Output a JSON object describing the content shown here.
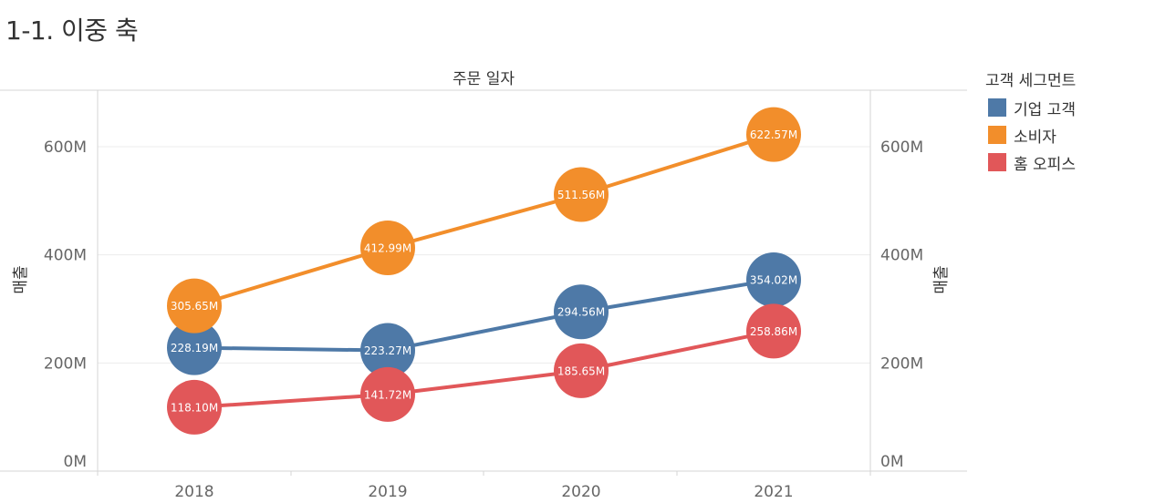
{
  "title": "1-1. 이중 축",
  "chart_data": {
    "type": "line",
    "title": "1-1. 이중 축",
    "xlabel": "주문 일자",
    "ylabel": "매출",
    "ylabel_right": "매출",
    "categories": [
      "2018",
      "2019",
      "2020",
      "2021"
    ],
    "y_ticks": [
      "0M",
      "200M",
      "400M",
      "600M"
    ],
    "y_tick_values": [
      0,
      200,
      400,
      600
    ],
    "ylim": [
      0,
      700
    ],
    "grid": true,
    "legend_title": "고객 세그먼트",
    "legend_position": "right",
    "series": [
      {
        "name": "기업 고객",
        "color": "#4e79a7",
        "values": [
          228.19,
          223.27,
          294.56,
          354.02
        ],
        "labels": [
          "228.19M",
          "223.27M",
          "294.56M",
          "354.02M"
        ]
      },
      {
        "name": "소비자",
        "color": "#f28e2b",
        "values": [
          305.65,
          412.99,
          511.56,
          622.57
        ],
        "labels": [
          "305.65M",
          "412.99M",
          "511.56M",
          "622.57M"
        ]
      },
      {
        "name": "홈 오피스",
        "color": "#e15759",
        "values": [
          118.1,
          141.72,
          185.65,
          258.86
        ],
        "labels": [
          "118.10M",
          "141.72M",
          "185.65M",
          "258.86M"
        ]
      }
    ]
  }
}
